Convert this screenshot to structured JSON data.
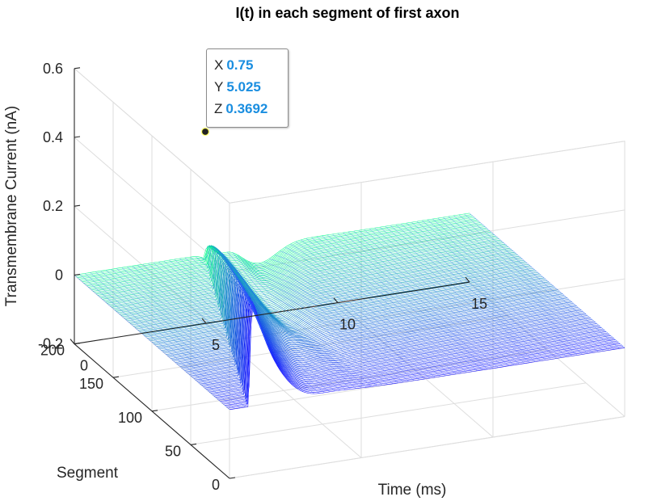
{
  "chart_data": {
    "type": "surface",
    "style": "mesh",
    "title": "I(t) in each segment of first axon",
    "xlabel": "Time (ms)",
    "ylabel": "Segment",
    "zlabel": "Transmembrane Current (nA)",
    "xlim": [
      0,
      15
    ],
    "ylim": [
      0,
      200
    ],
    "zlim": [
      -0.2,
      0.6
    ],
    "xticks": [
      "0",
      "5",
      "10",
      "15"
    ],
    "yticks": [
      "0",
      "50",
      "100",
      "150",
      "200"
    ],
    "zticks": [
      "-0.2",
      "0",
      "0.2",
      "0.4",
      "0.6"
    ],
    "grid": true,
    "colormap": [
      "#0a00ff",
      "#00ff88"
    ],
    "surface_description": "Current is 0 everywhere except a sharp positive spike near t≈0.75 ms that decays exponentially; its peak (~0.37 nA near segment 0) shrinks and its onset shifts later with increasing segment; small negative dips follow, with a second bump near t≈5 ms.",
    "samples": [
      {
        "segment": 0,
        "t": [
          0,
          0.7,
          0.75,
          1,
          1.5,
          2,
          3,
          5,
          15
        ],
        "I": [
          0,
          0,
          0.3692,
          0.3,
          0.21,
          0.14,
          0.06,
          0.0,
          0
        ]
      },
      {
        "segment": 100,
        "t": [
          0,
          2.3,
          2.4,
          3,
          4,
          5,
          6,
          15
        ],
        "I": [
          0,
          0,
          0.25,
          0.12,
          0.02,
          -0.05,
          -0.01,
          0
        ]
      },
      {
        "segment": 200,
        "t": [
          0,
          4.8,
          5.0,
          6,
          8,
          15
        ],
        "I": [
          0,
          0,
          0.05,
          -0.06,
          -0.02,
          0
        ]
      }
    ],
    "datatip": {
      "x": "0.75",
      "y": "5.025",
      "z": "0.3692"
    }
  }
}
